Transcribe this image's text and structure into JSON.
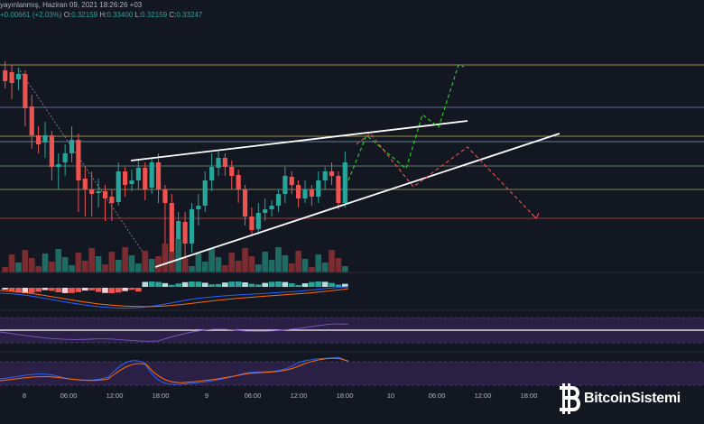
{
  "header": {
    "line1": "yayınlanmış, Haziran 09, 2021 18:26:26 +03",
    "change": "+0.00661 (+2.03%)",
    "o_label": "O:",
    "o_value": "0.32159",
    "h_label": "H:",
    "h_value": "0.33400",
    "l_label": "L:",
    "l_value": "0.32159",
    "c_label": "C:",
    "c_value": "0.33247"
  },
  "time_axis": [
    "8",
    "06:00",
    "12:00",
    "18:00",
    "9",
    "06:00",
    "12:00",
    "18:00",
    "10",
    "06:00",
    "12:00",
    "18:00"
  ],
  "watermark": {
    "icon": "bitcoin-icon",
    "text": "BitcoinSistemi"
  },
  "colors": {
    "background": "#131722",
    "up": "#26a69a",
    "down": "#ef5350",
    "projection_up": "#2bd62b",
    "projection_down": "#ef5350",
    "trendline": "#ffffff",
    "resistance_yellow": "#c9b458",
    "support_red": "#9e3a3a",
    "oscillator_bg": "#2a1f45",
    "macd_line": "#2962ff",
    "signal_line": "#ff6d00"
  },
  "chart_data": {
    "type": "candlestick",
    "annotations": [
      "rising wedge trendlines",
      "bullish projection path (green dashed)",
      "bearish projection path (red dashed)"
    ],
    "indicators": [
      "volume",
      "MACD histogram",
      "RSI",
      "Stochastic RSI"
    ]
  }
}
